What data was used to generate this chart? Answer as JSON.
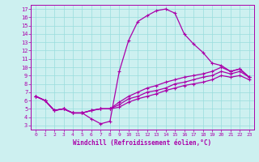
{
  "xlabel": "Windchill (Refroidissement éolien,°C)",
  "background_color": "#cdf0f0",
  "line_color": "#aa00aa",
  "grid_color": "#99dddd",
  "xlim": [
    -0.5,
    23.5
  ],
  "ylim": [
    2.5,
    17.5
  ],
  "xticks": [
    0,
    1,
    2,
    3,
    4,
    5,
    6,
    7,
    8,
    9,
    10,
    11,
    12,
    13,
    14,
    15,
    16,
    17,
    18,
    19,
    20,
    21,
    22,
    23
  ],
  "yticks": [
    3,
    4,
    5,
    6,
    7,
    8,
    9,
    10,
    11,
    12,
    13,
    14,
    15,
    16,
    17
  ],
  "x": [
    0,
    1,
    2,
    3,
    4,
    5,
    6,
    7,
    8,
    9,
    10,
    11,
    12,
    13,
    14,
    15,
    16,
    17,
    18,
    19,
    20,
    21,
    22,
    23
  ],
  "upper": [
    6.5,
    6.0,
    4.8,
    5.0,
    4.5,
    4.5,
    3.8,
    3.2,
    3.5,
    9.5,
    13.2,
    15.5,
    16.2,
    16.8,
    17.0,
    16.5,
    14.0,
    12.8,
    11.8,
    10.5,
    10.2,
    9.5,
    9.8,
    8.8
  ],
  "mid1": [
    6.5,
    6.0,
    4.8,
    5.0,
    4.5,
    4.5,
    4.8,
    5.0,
    5.0,
    5.8,
    6.5,
    7.0,
    7.5,
    7.8,
    8.2,
    8.5,
    8.8,
    9.0,
    9.2,
    9.5,
    10.0,
    9.5,
    9.8,
    8.8
  ],
  "mid2": [
    6.5,
    6.0,
    4.8,
    5.0,
    4.5,
    4.5,
    4.8,
    5.0,
    5.0,
    5.5,
    6.2,
    6.5,
    7.0,
    7.2,
    7.5,
    8.0,
    8.2,
    8.5,
    8.8,
    9.0,
    9.5,
    9.2,
    9.5,
    8.8
  ],
  "lower": [
    6.5,
    6.0,
    4.8,
    5.0,
    4.5,
    4.5,
    4.8,
    5.0,
    5.0,
    5.2,
    5.8,
    6.2,
    6.5,
    6.8,
    7.2,
    7.5,
    7.8,
    8.0,
    8.2,
    8.5,
    9.0,
    8.8,
    9.0,
    8.5
  ]
}
